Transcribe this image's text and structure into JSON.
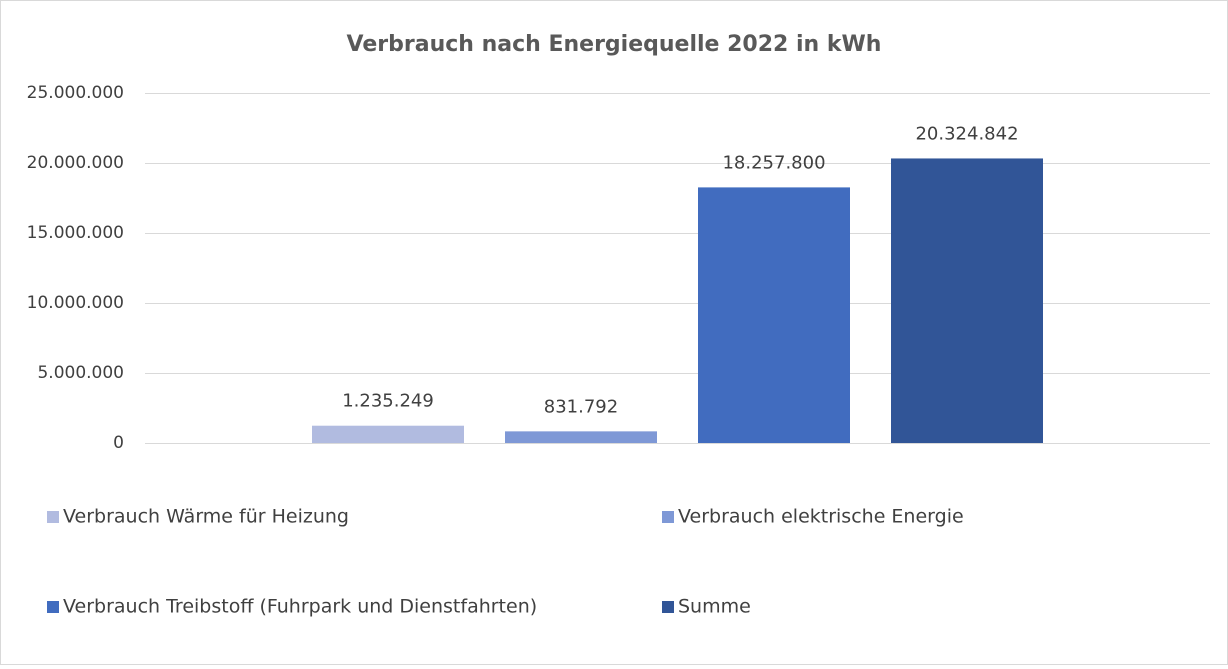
{
  "chart_data": {
    "type": "bar",
    "title": "Verbrauch nach Energiequelle 2022 in kWh",
    "series": [
      {
        "name": "Verbrauch Wärme für Heizung",
        "color": "#b1bbe0",
        "values": [
          1235249
        ],
        "value_labels": [
          "1.235.249"
        ]
      },
      {
        "name": "Verbrauch elektrische Energie",
        "color": "#7e98d6",
        "values": [
          831792
        ],
        "value_labels": [
          "831.792"
        ]
      },
      {
        "name": "Verbrauch Treibstoff (Fuhrpark und Dienstfahrten)",
        "color": "#416cbf",
        "values": [
          18257800
        ],
        "value_labels": [
          "18.257.800"
        ]
      },
      {
        "name": "Summe",
        "color": "#315597",
        "values": [
          20324842
        ],
        "value_labels": [
          "20.324.842"
        ]
      }
    ],
    "ylim": [
      0,
      25000000
    ],
    "yticks": [
      0,
      {
        "value": 5000000,
        "label": "5.000.000"
      },
      {
        "value": 10000000,
        "label": "10.000.000"
      },
      {
        "value": 15000000,
        "label": "15.000.000"
      },
      {
        "value": 20000000,
        "label": "20.000.000"
      },
      {
        "value": 25000000,
        "label": "25.000.000"
      }
    ],
    "grid": true,
    "legend": "bottom"
  }
}
